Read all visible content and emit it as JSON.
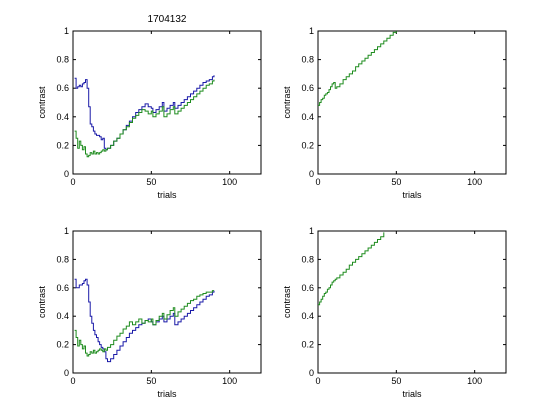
{
  "figure_title": "1704132",
  "colors": {
    "blue": "#1a1aa8",
    "green": "#1e8c1e"
  },
  "chart_data": [
    {
      "type": "line",
      "title": "1704132",
      "xlabel": "trials",
      "ylabel": "contrast",
      "xlim": [
        0,
        120
      ],
      "ylim": [
        0,
        1
      ],
      "xticks": [
        0,
        50,
        100
      ],
      "yticks": [
        0,
        0.2,
        0.4,
        0.6,
        0.8,
        1
      ],
      "ytick_labels": [
        "0",
        "0.2",
        "0.4",
        "0.6",
        "0.8",
        "1"
      ],
      "series": [
        {
          "name": "blue",
          "color": "#1a1aa8",
          "x": [
            1,
            2,
            3,
            4,
            5,
            6,
            7,
            8,
            9,
            10,
            11,
            12,
            13,
            14,
            15,
            16,
            17,
            18,
            19,
            20,
            21,
            22,
            24,
            26,
            28,
            30,
            32,
            34,
            36,
            38,
            40,
            42,
            44,
            46,
            48,
            50,
            51,
            53,
            55,
            57,
            58,
            60,
            62,
            64,
            65,
            67,
            69,
            71,
            73,
            75,
            77,
            79,
            81,
            83,
            85,
            87,
            89,
            90
          ],
          "y": [
            0.67,
            0.6,
            0.61,
            0.62,
            0.61,
            0.63,
            0.64,
            0.66,
            0.6,
            0.47,
            0.35,
            0.33,
            0.3,
            0.28,
            0.27,
            0.27,
            0.26,
            0.24,
            0.25,
            0.18,
            0.17,
            0.18,
            0.2,
            0.23,
            0.25,
            0.28,
            0.31,
            0.34,
            0.37,
            0.4,
            0.43,
            0.45,
            0.47,
            0.49,
            0.47,
            0.46,
            0.43,
            0.45,
            0.47,
            0.5,
            0.44,
            0.46,
            0.48,
            0.5,
            0.46,
            0.48,
            0.5,
            0.52,
            0.54,
            0.56,
            0.58,
            0.6,
            0.62,
            0.64,
            0.65,
            0.66,
            0.68,
            0.69
          ]
        },
        {
          "name": "green",
          "color": "#1e8c1e",
          "x": [
            1,
            2,
            3,
            4,
            5,
            6,
            7,
            8,
            9,
            10,
            11,
            12,
            13,
            14,
            15,
            16,
            17,
            18,
            19,
            20,
            21,
            22,
            24,
            26,
            28,
            30,
            32,
            34,
            36,
            38,
            40,
            42,
            44,
            46,
            48,
            50,
            51,
            53,
            55,
            57,
            58,
            60,
            62,
            64,
            65,
            67,
            69,
            71,
            73,
            75,
            77,
            79,
            81,
            83,
            85,
            87,
            89,
            90
          ],
          "y": [
            0.3,
            0.25,
            0.18,
            0.23,
            0.2,
            0.17,
            0.19,
            0.14,
            0.12,
            0.13,
            0.15,
            0.14,
            0.16,
            0.14,
            0.15,
            0.14,
            0.15,
            0.16,
            0.17,
            0.16,
            0.17,
            0.18,
            0.2,
            0.23,
            0.25,
            0.28,
            0.31,
            0.33,
            0.36,
            0.39,
            0.41,
            0.43,
            0.45,
            0.44,
            0.42,
            0.44,
            0.4,
            0.42,
            0.44,
            0.47,
            0.4,
            0.42,
            0.45,
            0.47,
            0.42,
            0.44,
            0.46,
            0.48,
            0.5,
            0.52,
            0.54,
            0.56,
            0.58,
            0.6,
            0.62,
            0.63,
            0.65,
            0.66
          ]
        }
      ]
    },
    {
      "type": "line",
      "title": "",
      "xlabel": "trials",
      "ylabel": "contrast",
      "xlim": [
        0,
        120
      ],
      "ylim": [
        0,
        1
      ],
      "xticks": [
        0,
        50,
        100
      ],
      "yticks": [
        0,
        0.2,
        0.4,
        0.6,
        0.8,
        1
      ],
      "ytick_labels": [
        "0",
        "0.2",
        "0.4",
        "0.6",
        "0.8",
        "1"
      ],
      "series": [
        {
          "name": "green",
          "color": "#1e8c1e",
          "x": [
            0,
            1,
            2,
            3,
            4,
            5,
            6,
            7,
            8,
            9,
            10,
            11,
            12,
            14,
            16,
            18,
            20,
            22,
            24,
            26,
            28,
            30,
            32,
            34,
            36,
            38,
            40,
            42,
            44,
            46,
            48,
            50
          ],
          "y": [
            0.48,
            0.5,
            0.52,
            0.53,
            0.55,
            0.56,
            0.57,
            0.59,
            0.61,
            0.63,
            0.64,
            0.6,
            0.61,
            0.63,
            0.66,
            0.68,
            0.7,
            0.72,
            0.75,
            0.77,
            0.79,
            0.81,
            0.83,
            0.85,
            0.87,
            0.89,
            0.91,
            0.93,
            0.95,
            0.97,
            0.99,
            1.0
          ]
        }
      ]
    },
    {
      "type": "line",
      "title": "",
      "xlabel": "trials",
      "ylabel": "contrast",
      "xlim": [
        0,
        120
      ],
      "ylim": [
        0,
        1
      ],
      "xticks": [
        0,
        50,
        100
      ],
      "yticks": [
        0,
        0.2,
        0.4,
        0.6,
        0.8,
        1
      ],
      "ytick_labels": [
        "0",
        "0.2",
        "0.4",
        "0.6",
        "0.8",
        "1"
      ],
      "series": [
        {
          "name": "blue",
          "color": "#1a1aa8",
          "x": [
            1,
            2,
            3,
            4,
            5,
            6,
            7,
            8,
            9,
            10,
            11,
            12,
            13,
            14,
            15,
            16,
            17,
            18,
            19,
            20,
            21,
            22,
            24,
            26,
            28,
            30,
            32,
            34,
            36,
            38,
            40,
            42,
            44,
            46,
            48,
            50,
            51,
            53,
            55,
            57,
            58,
            60,
            62,
            64,
            65,
            67,
            69,
            71,
            73,
            75,
            77,
            79,
            81,
            83,
            85,
            87,
            89,
            90
          ],
          "y": [
            0.66,
            0.6,
            0.6,
            0.62,
            0.62,
            0.63,
            0.65,
            0.66,
            0.62,
            0.5,
            0.4,
            0.35,
            0.3,
            0.27,
            0.25,
            0.22,
            0.2,
            0.18,
            0.17,
            0.15,
            0.1,
            0.08,
            0.1,
            0.13,
            0.16,
            0.19,
            0.22,
            0.25,
            0.28,
            0.3,
            0.32,
            0.34,
            0.35,
            0.37,
            0.38,
            0.36,
            0.34,
            0.36,
            0.38,
            0.4,
            0.36,
            0.38,
            0.4,
            0.42,
            0.34,
            0.36,
            0.38,
            0.4,
            0.42,
            0.44,
            0.46,
            0.48,
            0.5,
            0.52,
            0.54,
            0.55,
            0.57,
            0.58
          ]
        },
        {
          "name": "green",
          "color": "#1e8c1e",
          "x": [
            1,
            2,
            3,
            4,
            5,
            6,
            7,
            8,
            9,
            10,
            11,
            12,
            13,
            14,
            15,
            16,
            17,
            18,
            19,
            20,
            21,
            22,
            24,
            26,
            28,
            30,
            32,
            34,
            36,
            38,
            40,
            42,
            44,
            46,
            48,
            50,
            51,
            53,
            55,
            57,
            58,
            60,
            62,
            64,
            65,
            67,
            69,
            71,
            73,
            75,
            77,
            79,
            81,
            83,
            85,
            87,
            89,
            90
          ],
          "y": [
            0.3,
            0.25,
            0.19,
            0.23,
            0.2,
            0.17,
            0.19,
            0.14,
            0.12,
            0.13,
            0.15,
            0.14,
            0.16,
            0.14,
            0.15,
            0.16,
            0.17,
            0.16,
            0.15,
            0.17,
            0.16,
            0.18,
            0.2,
            0.23,
            0.26,
            0.28,
            0.31,
            0.33,
            0.36,
            0.34,
            0.36,
            0.38,
            0.35,
            0.37,
            0.36,
            0.38,
            0.34,
            0.37,
            0.4,
            0.42,
            0.38,
            0.41,
            0.44,
            0.46,
            0.4,
            0.43,
            0.45,
            0.47,
            0.49,
            0.51,
            0.52,
            0.54,
            0.55,
            0.56,
            0.57,
            0.57,
            0.58,
            0.58
          ]
        }
      ]
    },
    {
      "type": "line",
      "title": "",
      "xlabel": "trials",
      "ylabel": "contrast",
      "xlim": [
        0,
        120
      ],
      "ylim": [
        0,
        1
      ],
      "xticks": [
        0,
        50,
        100
      ],
      "yticks": [
        0,
        0.2,
        0.4,
        0.6,
        0.8,
        1
      ],
      "ytick_labels": [
        "0",
        "0.2",
        "0.4",
        "0.6",
        "0.8",
        "1"
      ],
      "series": [
        {
          "name": "green",
          "color": "#1e8c1e",
          "x": [
            0,
            1,
            2,
            3,
            4,
            5,
            6,
            7,
            8,
            9,
            10,
            11,
            12,
            14,
            16,
            18,
            20,
            22,
            24,
            26,
            28,
            30,
            32,
            34,
            36,
            38,
            40,
            42
          ],
          "y": [
            0.48,
            0.5,
            0.52,
            0.54,
            0.56,
            0.57,
            0.59,
            0.6,
            0.62,
            0.64,
            0.65,
            0.66,
            0.67,
            0.69,
            0.71,
            0.73,
            0.76,
            0.78,
            0.8,
            0.82,
            0.84,
            0.86,
            0.88,
            0.9,
            0.92,
            0.94,
            0.96,
            0.99
          ]
        }
      ]
    }
  ]
}
